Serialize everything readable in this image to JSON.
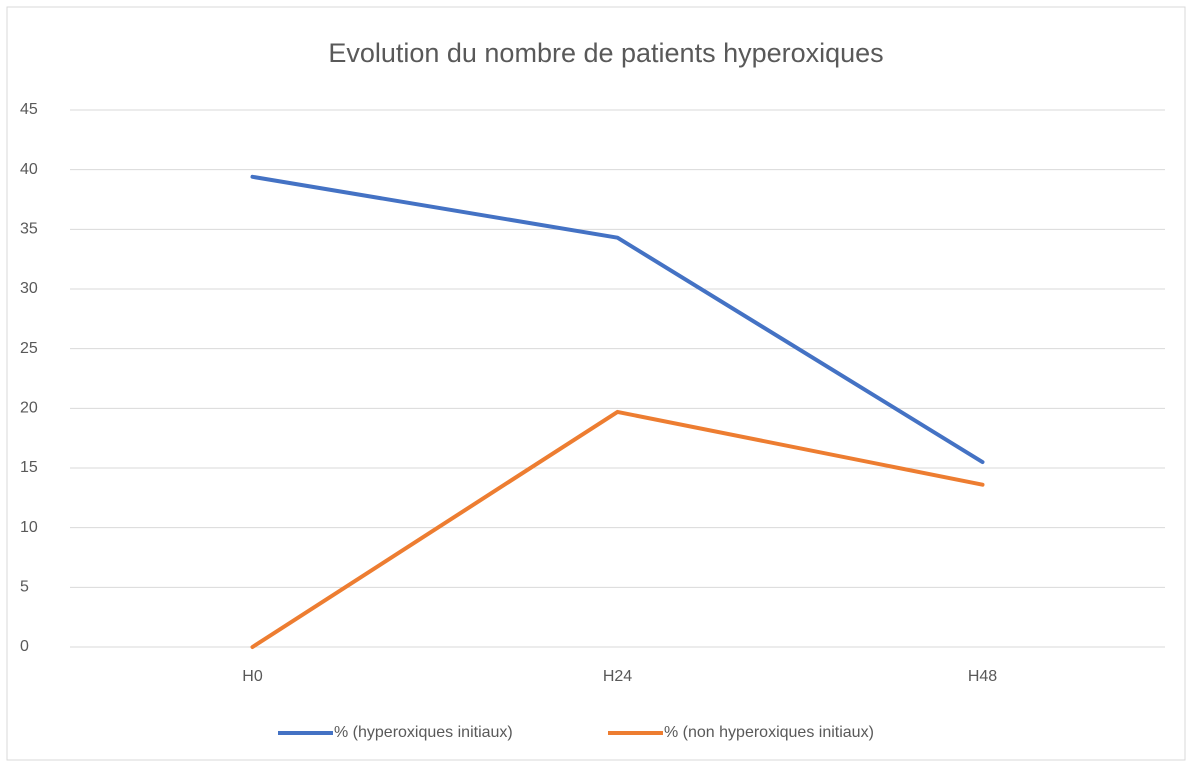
{
  "chart_data": {
    "type": "line",
    "title": "Evolution du nombre de patients hyperoxiques",
    "categories": [
      "H0",
      "H24",
      "H48"
    ],
    "series": [
      {
        "name": "% (hyperoxiques initiaux)",
        "color": "#4472c4",
        "values": [
          39.4,
          34.3,
          15.5
        ]
      },
      {
        "name": "% (non hyperoxiques initiaux)",
        "color": "#ed7d31",
        "values": [
          0,
          19.7,
          13.6
        ]
      }
    ],
    "ylim": [
      0,
      45
    ],
    "yticks": [
      0,
      5,
      10,
      15,
      20,
      25,
      30,
      35,
      40,
      45
    ],
    "grid": true,
    "legend": "bottom"
  }
}
